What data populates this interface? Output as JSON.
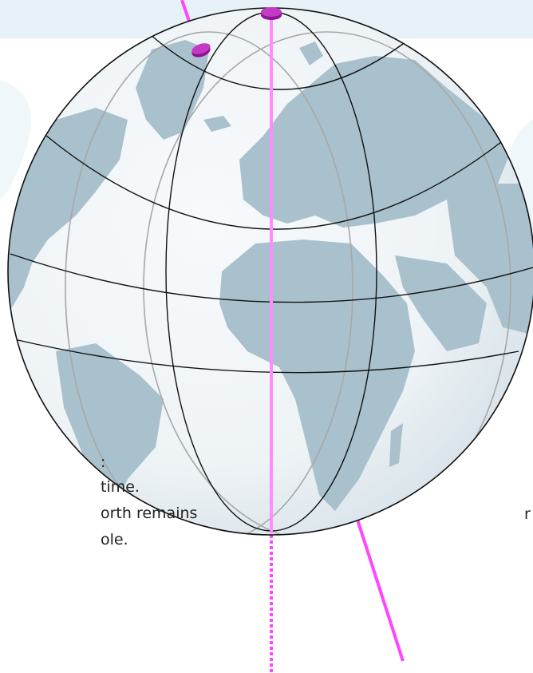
{
  "colors": {
    "background": "#ffffff",
    "band": "#e6f2f7",
    "swirl": "#f0f7fa",
    "ocean_light": "#f7fafc",
    "ocean_dark": "#d3dfe6",
    "land": "#a9c1cc",
    "graticule": "#111111",
    "back_graticule": "#a7a7a7",
    "axis": "#ff45ff",
    "pole_dark": "#8e1196",
    "pole_light": "#c33ac4",
    "text": "#222222"
  },
  "icons": {
    "globe": "globe-icon",
    "pole_marker": "pole-marker-icon",
    "axis_line": "axis-line-icon"
  },
  "text_fragments": [
    ":",
    "time.",
    "orth remains",
    "ole.",
    "r"
  ]
}
